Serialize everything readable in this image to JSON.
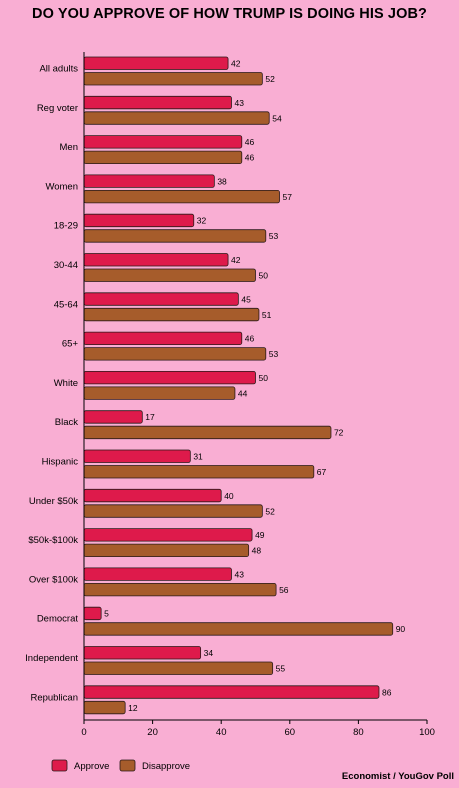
{
  "chart_data": {
    "type": "bar",
    "orientation": "horizontal",
    "title": "DO YOU APPROVE OF HOW TRUMP IS DOING HIS JOB?",
    "categories": [
      "All adults",
      "Reg voter",
      "Men",
      "Women",
      "18-29",
      "30-44",
      "45-64",
      "65+",
      "White",
      "Black",
      "Hispanic",
      "Under $50k",
      "$50k-$100k",
      "Over $100k",
      "Democrat",
      "Independent",
      "Republican"
    ],
    "series": [
      {
        "name": "Approve",
        "color": "#de1a4b",
        "values": [
          42,
          43,
          46,
          38,
          32,
          42,
          45,
          46,
          50,
          17,
          31,
          40,
          49,
          43,
          5,
          34,
          86
        ]
      },
      {
        "name": "Disapprove",
        "color": "#a65c2b",
        "values": [
          52,
          54,
          46,
          57,
          53,
          50,
          51,
          53,
          44,
          72,
          67,
          52,
          48,
          56,
          90,
          55,
          12
        ]
      }
    ],
    "xlim": [
      0,
      100
    ],
    "xticks": [
      0,
      20,
      40,
      60,
      80,
      100
    ],
    "legend_position": "bottom-left",
    "grid": false
  },
  "source": "Economist / YouGov Poll"
}
